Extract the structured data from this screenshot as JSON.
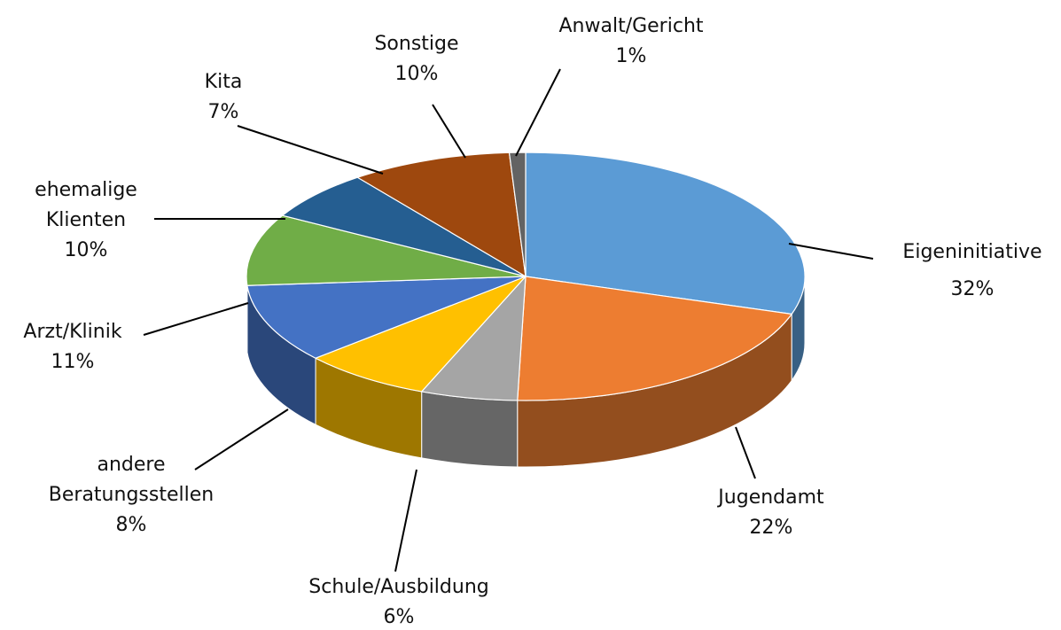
{
  "chart_data": {
    "type": "pie3d",
    "categories": [
      "Eigeninitiative",
      "Jugendamt",
      "Schule/Ausbildung",
      "andere Beratungsstellen",
      "Arzt/Klinik",
      "ehemalige Klienten",
      "Kita",
      "Sonstige",
      "Anwalt/Gericht"
    ],
    "values": [
      32,
      22,
      6,
      8,
      11,
      10,
      7,
      10,
      1
    ],
    "value_labels": [
      "32%",
      "22%",
      "6%",
      "8%",
      "11%",
      "10%",
      "7%",
      "10%",
      "1%"
    ],
    "colors": [
      "#5b9bd5",
      "#ed7d31",
      "#a5a5a5",
      "#ffc000",
      "#4472c4",
      "#70ad47",
      "#255e91",
      "#9e480e",
      "#636363"
    ]
  }
}
